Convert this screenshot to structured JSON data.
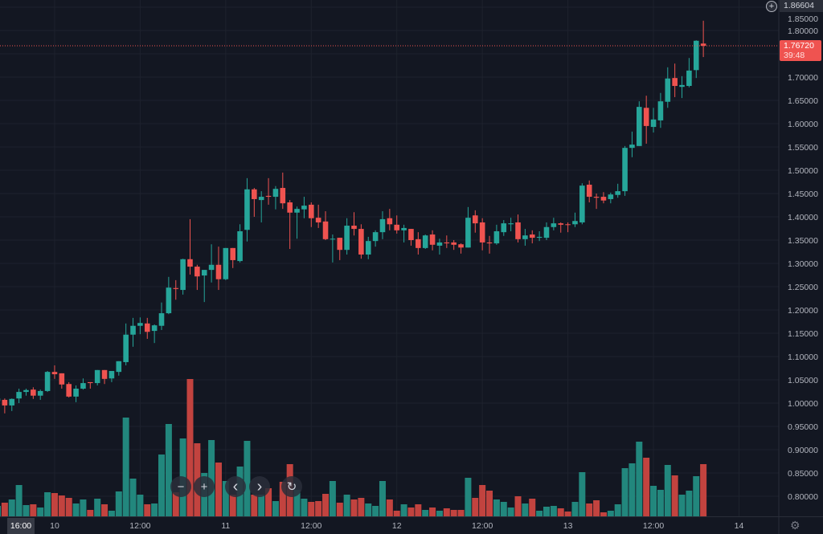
{
  "chart_data": {
    "type": "candlestick",
    "price_axis": {
      "ticks": [
        0.8,
        0.85,
        0.9,
        0.95,
        1.0,
        1.05,
        1.1,
        1.15,
        1.2,
        1.25,
        1.3,
        1.35,
        1.4,
        1.45,
        1.5,
        1.55,
        1.6,
        1.65,
        1.7,
        1.75,
        1.8,
        1.85
      ],
      "decimals": 5,
      "range": [
        0.78,
        1.86
      ]
    },
    "time_axis": {
      "ticks": [
        {
          "label": "10",
          "bar": 8
        },
        {
          "label": "12:00",
          "bar": 20
        },
        {
          "label": "11",
          "bar": 32
        },
        {
          "label": "12:00",
          "bar": 44
        },
        {
          "label": "12",
          "bar": 56
        },
        {
          "label": "12:00",
          "bar": 68
        },
        {
          "label": "13",
          "bar": 80
        },
        {
          "label": "12:00",
          "bar": 92
        },
        {
          "label": "14",
          "bar": 104
        }
      ],
      "crosshair_label": "16:00"
    },
    "grid": true,
    "colors": {
      "up": "#26a69a",
      "down": "#ef5350",
      "volume_up": "#22877d",
      "volume_down": "#c2433f",
      "background": "#131722"
    },
    "ohlc": [
      [
        1.004,
        1.012,
        0.999,
        1.01
      ],
      [
        1.007,
        1.01,
        0.978,
        0.995
      ],
      [
        0.995,
        1.01,
        0.983,
        1.009
      ],
      [
        1.01,
        1.031,
        1.0,
        1.024
      ],
      [
        1.024,
        1.031,
        1.016,
        1.028
      ],
      [
        1.029,
        1.034,
        1.009,
        1.016
      ],
      [
        1.016,
        1.029,
        1.007,
        1.026
      ],
      [
        1.026,
        1.069,
        1.024,
        1.067
      ],
      [
        1.067,
        1.081,
        1.052,
        1.062
      ],
      [
        1.064,
        1.064,
        1.031,
        1.04
      ],
      [
        1.041,
        1.045,
        1.012,
        1.014
      ],
      [
        1.014,
        1.038,
        1.002,
        1.031
      ],
      [
        1.031,
        1.053,
        1.029,
        1.043
      ],
      [
        1.045,
        1.045,
        1.031,
        1.043
      ],
      [
        1.043,
        1.071,
        1.038,
        1.071
      ],
      [
        1.071,
        1.071,
        1.041,
        1.052
      ],
      [
        1.053,
        1.069,
        1.045,
        1.069
      ],
      [
        1.067,
        1.09,
        1.059,
        1.09
      ],
      [
        1.088,
        1.171,
        1.081,
        1.147
      ],
      [
        1.147,
        1.183,
        1.121,
        1.166
      ],
      [
        1.166,
        1.184,
        1.148,
        1.172
      ],
      [
        1.171,
        1.183,
        1.138,
        1.153
      ],
      [
        1.155,
        1.169,
        1.129,
        1.167
      ],
      [
        1.166,
        1.216,
        1.157,
        1.193
      ],
      [
        1.193,
        1.271,
        1.191,
        1.248
      ],
      [
        1.247,
        1.264,
        1.222,
        1.245
      ],
      [
        1.243,
        1.31,
        1.233,
        1.309
      ],
      [
        1.309,
        1.395,
        1.276,
        1.293
      ],
      [
        1.293,
        1.297,
        1.243,
        1.272
      ],
      [
        1.274,
        1.286,
        1.217,
        1.286
      ],
      [
        1.286,
        1.341,
        1.259,
        1.297
      ],
      [
        1.297,
        1.336,
        1.243,
        1.266
      ],
      [
        1.266,
        1.333,
        1.264,
        1.333
      ],
      [
        1.333,
        1.333,
        1.29,
        1.307
      ],
      [
        1.305,
        1.384,
        1.302,
        1.369
      ],
      [
        1.372,
        1.483,
        1.347,
        1.459
      ],
      [
        1.459,
        1.462,
        1.4,
        1.438
      ],
      [
        1.436,
        1.455,
        1.388,
        1.443
      ],
      [
        1.445,
        1.483,
        1.426,
        1.443
      ],
      [
        1.443,
        1.466,
        1.416,
        1.46
      ],
      [
        1.462,
        1.495,
        1.417,
        1.429
      ],
      [
        1.431,
        1.436,
        1.331,
        1.409
      ],
      [
        1.409,
        1.422,
        1.353,
        1.417
      ],
      [
        1.416,
        1.443,
        1.397,
        1.424
      ],
      [
        1.426,
        1.431,
        1.378,
        1.397
      ],
      [
        1.398,
        1.426,
        1.376,
        1.388
      ],
      [
        1.39,
        1.412,
        1.35,
        1.352
      ],
      [
        1.352,
        1.362,
        1.302,
        1.353
      ],
      [
        1.355,
        1.355,
        1.307,
        1.329
      ],
      [
        1.329,
        1.397,
        1.319,
        1.381
      ],
      [
        1.381,
        1.41,
        1.36,
        1.374
      ],
      [
        1.374,
        1.384,
        1.31,
        1.319
      ],
      [
        1.319,
        1.357,
        1.309,
        1.348
      ],
      [
        1.348,
        1.371,
        1.336,
        1.367
      ],
      [
        1.367,
        1.412,
        1.352,
        1.395
      ],
      [
        1.397,
        1.417,
        1.371,
        1.384
      ],
      [
        1.383,
        1.403,
        1.364,
        1.371
      ],
      [
        1.371,
        1.383,
        1.345,
        1.376
      ],
      [
        1.374,
        1.374,
        1.338,
        1.35
      ],
      [
        1.352,
        1.367,
        1.319,
        1.333
      ],
      [
        1.333,
        1.362,
        1.331,
        1.36
      ],
      [
        1.362,
        1.371,
        1.328,
        1.34
      ],
      [
        1.338,
        1.353,
        1.319,
        1.345
      ],
      [
        1.345,
        1.36,
        1.333,
        1.343
      ],
      [
        1.345,
        1.35,
        1.329,
        1.34
      ],
      [
        1.341,
        1.343,
        1.321,
        1.334
      ],
      [
        1.334,
        1.421,
        1.334,
        1.398
      ],
      [
        1.403,
        1.414,
        1.366,
        1.386
      ],
      [
        1.388,
        1.397,
        1.328,
        1.345
      ],
      [
        1.345,
        1.359,
        1.321,
        1.343
      ],
      [
        1.343,
        1.383,
        1.34,
        1.369
      ],
      [
        1.367,
        1.393,
        1.359,
        1.386
      ],
      [
        1.384,
        1.398,
        1.369,
        1.386
      ],
      [
        1.388,
        1.405,
        1.345,
        1.352
      ],
      [
        1.352,
        1.374,
        1.338,
        1.36
      ],
      [
        1.362,
        1.371,
        1.343,
        1.355
      ],
      [
        1.355,
        1.369,
        1.348,
        1.357
      ],
      [
        1.355,
        1.388,
        1.35,
        1.378
      ],
      [
        1.378,
        1.398,
        1.371,
        1.386
      ],
      [
        1.386,
        1.388,
        1.366,
        1.383
      ],
      [
        1.384,
        1.388,
        1.367,
        1.383
      ],
      [
        1.384,
        1.409,
        1.378,
        1.391
      ],
      [
        1.388,
        1.472,
        1.384,
        1.467
      ],
      [
        1.469,
        1.478,
        1.431,
        1.443
      ],
      [
        1.443,
        1.45,
        1.417,
        1.441
      ],
      [
        1.443,
        1.453,
        1.429,
        1.435
      ],
      [
        1.438,
        1.452,
        1.429,
        1.448
      ],
      [
        1.447,
        1.471,
        1.441,
        1.455
      ],
      [
        1.455,
        1.552,
        1.445,
        1.548
      ],
      [
        1.548,
        1.583,
        1.528,
        1.555
      ],
      [
        1.552,
        1.648,
        1.552,
        1.636
      ],
      [
        1.634,
        1.66,
        1.557,
        1.595
      ],
      [
        1.593,
        1.634,
        1.581,
        1.609
      ],
      [
        1.607,
        1.666,
        1.591,
        1.648
      ],
      [
        1.647,
        1.721,
        1.634,
        1.697
      ],
      [
        1.698,
        1.729,
        1.657,
        1.681
      ],
      [
        1.679,
        1.702,
        1.655,
        1.683
      ],
      [
        1.681,
        1.741,
        1.678,
        1.714
      ],
      [
        1.715,
        1.779,
        1.698,
        1.778
      ],
      [
        1.772,
        1.821,
        1.743,
        1.7672
      ]
    ],
    "volume_relative": [
      13,
      17,
      21,
      39,
      14,
      15,
      11,
      30,
      29,
      26,
      23,
      16,
      21,
      8,
      22,
      15,
      7,
      31,
      123,
      47,
      27,
      15,
      16,
      77,
      115,
      30,
      97,
      171,
      91,
      54,
      95,
      67,
      44,
      27,
      62,
      94,
      27,
      27,
      35,
      19,
      43,
      65,
      33,
      22,
      18,
      19,
      28,
      44,
      17,
      27,
      21,
      23,
      16,
      13,
      44,
      21,
      7,
      15,
      11,
      15,
      8,
      11,
      7,
      10,
      8,
      8,
      48,
      23,
      39,
      32,
      21,
      18,
      11,
      25,
      16,
      22,
      7,
      12,
      13,
      10,
      6,
      18,
      55,
      16,
      20,
      5,
      7,
      15,
      60,
      66,
      93,
      73,
      38,
      33,
      64,
      51,
      27,
      32,
      50,
      65
    ],
    "last_price": {
      "value": 1.7672,
      "label": "1.76720",
      "countdown": "39:48"
    },
    "top_label": "1.86604"
  },
  "icons": {
    "zoom_out": "−",
    "zoom_in": "+",
    "scroll_left": "‹",
    "scroll_right": "›",
    "reset": "↻",
    "plus": "+",
    "settings": "⚙"
  }
}
